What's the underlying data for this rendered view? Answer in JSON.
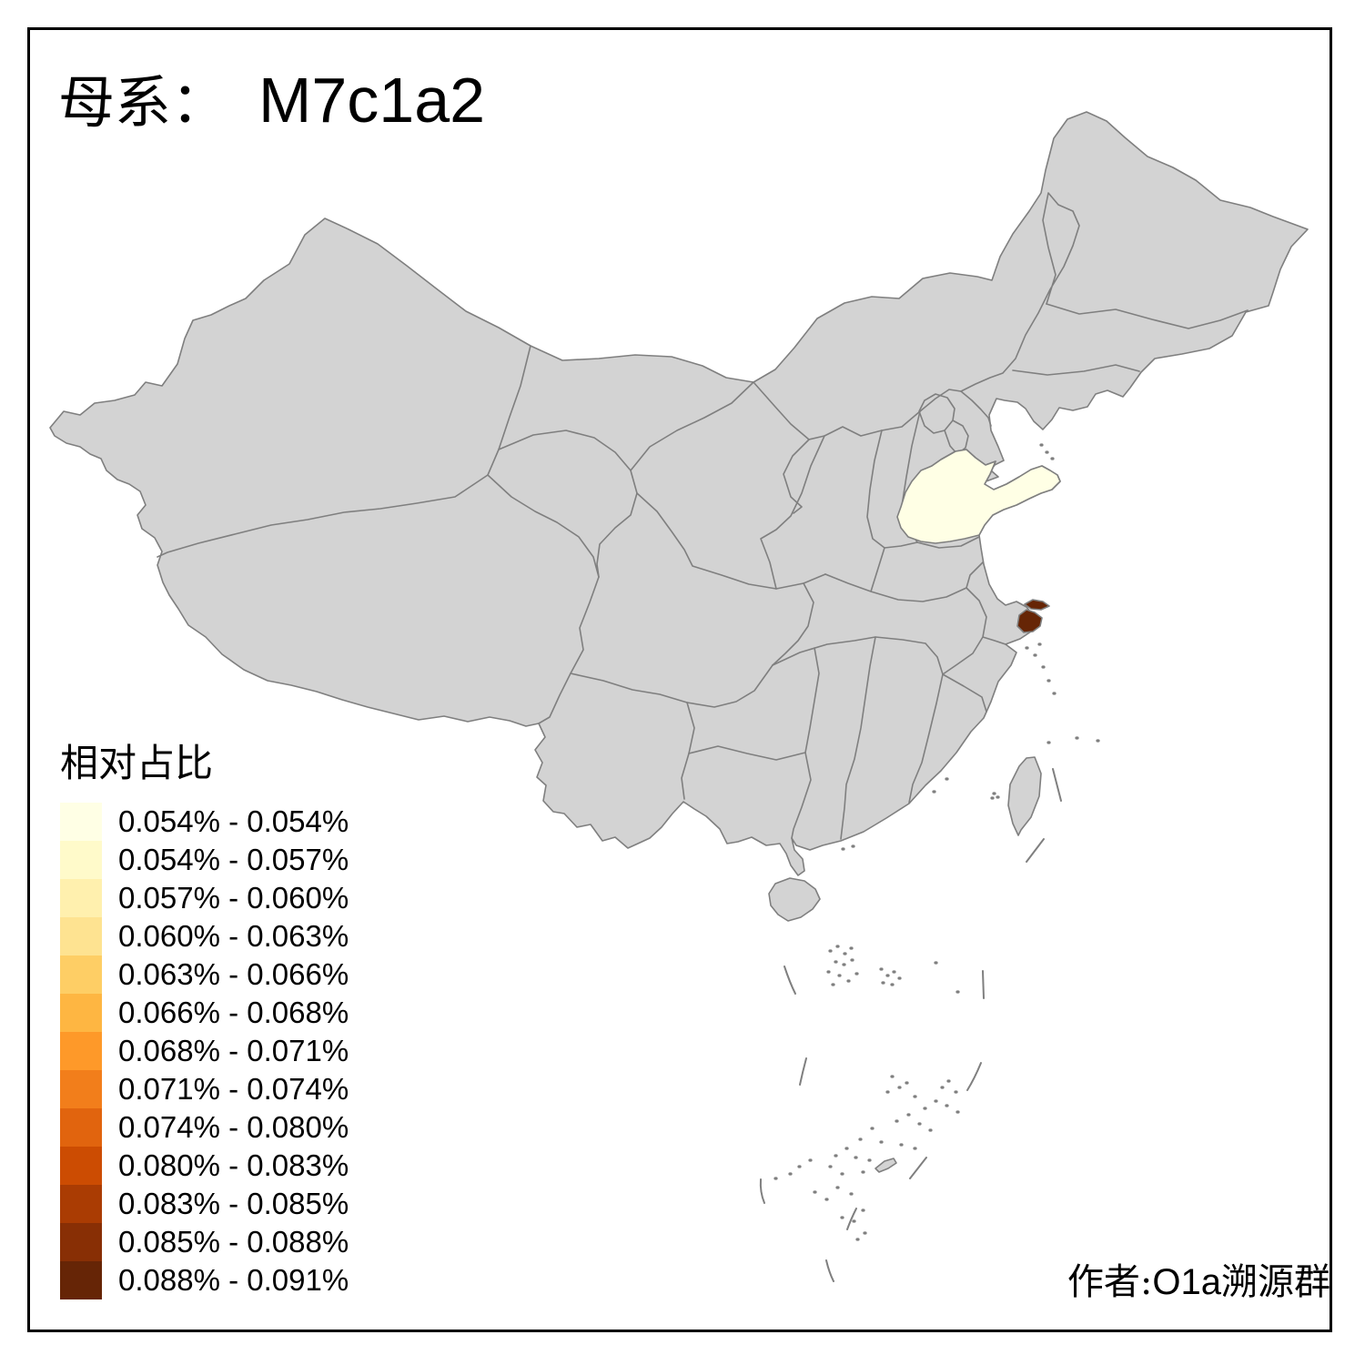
{
  "page": {
    "background": "#FFFFFF",
    "frame_color": "#000000"
  },
  "title": {
    "prefix": "母系：",
    "haplogroup": "M7c1a2"
  },
  "legend": {
    "title": "相对占比",
    "classes": [
      {
        "label": "0.054% - 0.054%",
        "color": "#FFFFE5"
      },
      {
        "label": "0.054% - 0.057%",
        "color": "#FFFACA"
      },
      {
        "label": "0.057% - 0.060%",
        "color": "#FFF0AE"
      },
      {
        "label": "0.060% - 0.063%",
        "color": "#FEE391"
      },
      {
        "label": "0.063% - 0.066%",
        "color": "#FECE65"
      },
      {
        "label": "0.066% - 0.068%",
        "color": "#FEB642"
      },
      {
        "label": "0.068% - 0.071%",
        "color": "#FE9929"
      },
      {
        "label": "0.071% - 0.074%",
        "color": "#F27E1B"
      },
      {
        "label": "0.074% - 0.080%",
        "color": "#E1640E"
      },
      {
        "label": "0.080% - 0.083%",
        "color": "#CC4C02"
      },
      {
        "label": "0.083% - 0.085%",
        "color": "#AA3C03"
      },
      {
        "label": "0.085% - 0.088%",
        "color": "#882F05"
      },
      {
        "label": "0.088% - 0.091%",
        "color": "#662506"
      }
    ]
  },
  "map": {
    "base_fill": "#D3D3D3",
    "border_color": "#7F7F7F",
    "sea_color": "#FFFFFF",
    "highlighted_regions": [
      {
        "name": "Shandong",
        "class_label": "0.054% - 0.054%",
        "color": "#FFFFE5"
      },
      {
        "name": "Shanghai",
        "class_label": "0.088% - 0.091%",
        "color": "#662506"
      }
    ]
  },
  "attribution": {
    "prefix": "作者:",
    "latin": "O1a",
    "suffix": "溯源群"
  }
}
